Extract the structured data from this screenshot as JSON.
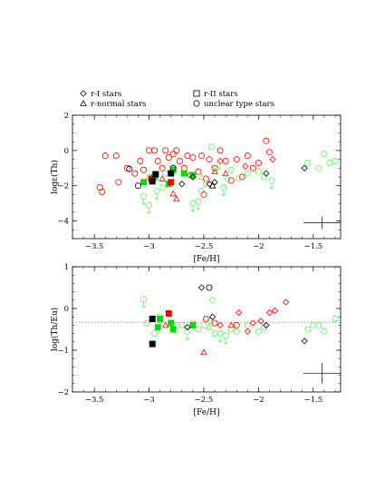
{
  "legend": {
    "items": [
      {
        "marker": "diamond",
        "label": "r-I stars"
      },
      {
        "marker": "square",
        "label": "r-II stars"
      },
      {
        "marker": "triangle",
        "label": "r-normal stars"
      },
      {
        "marker": "circle",
        "label": "unclear type stars"
      }
    ]
  },
  "colors": {
    "black": "#000000",
    "red": "#ff0000",
    "green": "#00dd00",
    "light_green": "#66ee66",
    "ref_line": "#ff6666"
  },
  "chart_data": [
    {
      "type": "scatter",
      "title": "",
      "xlabel": "[Fe/H]",
      "ylabel": "logε(Th)",
      "xlim": [
        -3.7,
        -1.25
      ],
      "ylim": [
        -5,
        2
      ],
      "xticks": [
        -3.5,
        -3,
        -2.5,
        -2,
        -1.5
      ],
      "xtick_labels": [
        "−3.5",
        "−3",
        "−2.5",
        "−2",
        "−1.5"
      ],
      "yticks": [
        -4,
        -2,
        0,
        2
      ],
      "ytick_labels": [
        "−4",
        "−2",
        "0",
        "2"
      ],
      "error_bar": {
        "x": -1.42,
        "y": -4.1,
        "dx": 0.17,
        "dy": 0.35
      },
      "points": [
        {
          "x": -3.45,
          "y": -2.1,
          "m": "circle",
          "c": "red"
        },
        {
          "x": -3.43,
          "y": -2.35,
          "m": "circle",
          "c": "red"
        },
        {
          "x": -3.4,
          "y": -0.3,
          "m": "circle",
          "c": "red"
        },
        {
          "x": -3.3,
          "y": -0.3,
          "m": "circle",
          "c": "red"
        },
        {
          "x": -3.28,
          "y": -1.8,
          "m": "circle",
          "c": "red"
        },
        {
          "x": -3.2,
          "y": -1.0,
          "m": "circle",
          "c": "red"
        },
        {
          "x": -3.13,
          "y": -1.3,
          "m": "circle",
          "c": "red"
        },
        {
          "x": -3.08,
          "y": -0.6,
          "m": "circle",
          "c": "red"
        },
        {
          "x": -3.05,
          "y": -1.1,
          "m": "circle",
          "c": "red"
        },
        {
          "x": -3.0,
          "y": 0.0,
          "m": "circle",
          "c": "red"
        },
        {
          "x": -2.95,
          "y": 0.0,
          "m": "circle",
          "c": "red"
        },
        {
          "x": -2.92,
          "y": -0.6,
          "m": "circle",
          "c": "red"
        },
        {
          "x": -2.88,
          "y": -1.0,
          "m": "circle",
          "c": "red"
        },
        {
          "x": -2.85,
          "y": 0.0,
          "m": "circle",
          "c": "red"
        },
        {
          "x": -2.82,
          "y": -0.4,
          "m": "circle",
          "c": "red"
        },
        {
          "x": -2.78,
          "y": -0.2,
          "m": "circle",
          "c": "red"
        },
        {
          "x": -2.75,
          "y": 0.0,
          "m": "circle",
          "c": "red"
        },
        {
          "x": -2.72,
          "y": -0.6,
          "m": "circle",
          "c": "red"
        },
        {
          "x": -2.68,
          "y": -1.0,
          "m": "circle",
          "c": "red"
        },
        {
          "x": -2.65,
          "y": -0.3,
          "m": "circle",
          "c": "red"
        },
        {
          "x": -2.62,
          "y": -1.4,
          "m": "circle",
          "c": "red"
        },
        {
          "x": -2.6,
          "y": -0.4,
          "m": "circle",
          "c": "red"
        },
        {
          "x": -2.55,
          "y": -1.2,
          "m": "circle",
          "c": "red"
        },
        {
          "x": -2.52,
          "y": -0.3,
          "m": "circle",
          "c": "red"
        },
        {
          "x": -2.5,
          "y": -2.5,
          "m": "circle",
          "c": "red"
        },
        {
          "x": -2.48,
          "y": -1.6,
          "m": "circle",
          "c": "red"
        },
        {
          "x": -2.45,
          "y": -0.5,
          "m": "circle",
          "c": "red"
        },
        {
          "x": -2.4,
          "y": -1.0,
          "m": "circle",
          "c": "red"
        },
        {
          "x": -2.35,
          "y": 0.0,
          "m": "circle",
          "c": "red"
        },
        {
          "x": -2.3,
          "y": -0.6,
          "m": "circle",
          "c": "red"
        },
        {
          "x": -2.25,
          "y": -1.7,
          "m": "circle",
          "c": "red"
        },
        {
          "x": -2.2,
          "y": -0.5,
          "m": "circle",
          "c": "red"
        },
        {
          "x": -2.15,
          "y": -1.5,
          "m": "circle",
          "c": "red"
        },
        {
          "x": -2.1,
          "y": -0.3,
          "m": "circle",
          "c": "red"
        },
        {
          "x": -2.05,
          "y": -1.0,
          "m": "circle",
          "c": "red"
        },
        {
          "x": -2.0,
          "y": -0.7,
          "m": "circle",
          "c": "red"
        },
        {
          "x": -1.93,
          "y": 0.55,
          "m": "circle",
          "c": "red"
        },
        {
          "x": -1.9,
          "y": -0.1,
          "m": "circle",
          "c": "red"
        },
        {
          "x": -2.6,
          "y": -1.5,
          "m": "diamond",
          "c": "red"
        },
        {
          "x": -2.35,
          "y": -0.6,
          "m": "diamond",
          "c": "red"
        },
        {
          "x": -2.12,
          "y": -0.9,
          "m": "diamond",
          "c": "red"
        },
        {
          "x": -1.87,
          "y": -0.5,
          "m": "diamond",
          "c": "red"
        },
        {
          "x": -2.88,
          "y": -1.6,
          "m": "triangle",
          "c": "red"
        },
        {
          "x": -2.78,
          "y": -2.45,
          "m": "triangle",
          "c": "red"
        },
        {
          "x": -2.75,
          "y": -2.75,
          "m": "triangle",
          "c": "red"
        },
        {
          "x": -2.4,
          "y": -1.2,
          "m": "triangle",
          "c": "red"
        },
        {
          "x": -2.3,
          "y": -1.3,
          "m": "triangle",
          "c": "red"
        },
        {
          "x": -3.05,
          "y": -2.6,
          "m": "circle",
          "c": "light_green",
          "upper": true
        },
        {
          "x": -3.0,
          "y": -3.1,
          "m": "circle",
          "c": "light_green",
          "upper": true
        },
        {
          "x": -3.0,
          "y": -1.5,
          "m": "circle",
          "c": "light_green"
        },
        {
          "x": -2.93,
          "y": -2.3,
          "m": "circle",
          "c": "light_green",
          "upper": true
        },
        {
          "x": -2.88,
          "y": -2.1,
          "m": "circle",
          "c": "light_green"
        },
        {
          "x": -2.85,
          "y": -1.3,
          "m": "circle",
          "c": "light_green"
        },
        {
          "x": -2.78,
          "y": -1.8,
          "m": "circle",
          "c": "light_green"
        },
        {
          "x": -2.6,
          "y": -3.0,
          "m": "circle",
          "c": "light_green",
          "upper": true
        },
        {
          "x": -2.55,
          "y": -2.9,
          "m": "circle",
          "c": "light_green",
          "upper": true
        },
        {
          "x": -2.52,
          "y": -2.3,
          "m": "circle",
          "c": "light_green"
        },
        {
          "x": -2.48,
          "y": -1.9,
          "m": "circle",
          "c": "light_green"
        },
        {
          "x": -2.43,
          "y": 0.2,
          "m": "circle",
          "c": "light_green"
        },
        {
          "x": -2.38,
          "y": -1.0,
          "m": "circle",
          "c": "light_green"
        },
        {
          "x": -2.32,
          "y": -2.1,
          "m": "circle",
          "c": "light_green",
          "upper": true
        },
        {
          "x": -2.28,
          "y": -1.6,
          "m": "circle",
          "c": "light_green"
        },
        {
          "x": -2.25,
          "y": -1.1,
          "m": "circle",
          "c": "light_green"
        },
        {
          "x": -2.18,
          "y": -1.6,
          "m": "circle",
          "c": "light_green"
        },
        {
          "x": -2.1,
          "y": -1.3,
          "m": "circle",
          "c": "light_green"
        },
        {
          "x": -2.0,
          "y": -1.2,
          "m": "circle",
          "c": "light_green"
        },
        {
          "x": -1.95,
          "y": -1.5,
          "m": "circle",
          "c": "light_green"
        },
        {
          "x": -1.88,
          "y": -1.7,
          "m": "circle",
          "c": "light_green",
          "upper": true
        },
        {
          "x": -1.55,
          "y": -0.7,
          "m": "circle",
          "c": "light_green"
        },
        {
          "x": -1.45,
          "y": -1.0,
          "m": "circle",
          "c": "light_green"
        },
        {
          "x": -1.4,
          "y": -0.2,
          "m": "circle",
          "c": "light_green"
        },
        {
          "x": -1.35,
          "y": -0.7,
          "m": "circle",
          "c": "light_green"
        },
        {
          "x": -1.3,
          "y": -0.6,
          "m": "circle",
          "c": "light_green"
        },
        {
          "x": -2.52,
          "y": -1.5,
          "m": "triangle",
          "c": "light_green"
        },
        {
          "x": -3.05,
          "y": -1.8,
          "m": "square",
          "c": "green"
        },
        {
          "x": -2.95,
          "y": -1.5,
          "m": "square",
          "c": "green"
        },
        {
          "x": -2.82,
          "y": -1.9,
          "m": "square",
          "c": "green"
        },
        {
          "x": -2.78,
          "y": -1.1,
          "m": "square",
          "c": "green"
        },
        {
          "x": -2.68,
          "y": -1.3,
          "m": "square",
          "c": "green"
        },
        {
          "x": -2.6,
          "y": -1.4,
          "m": "square",
          "c": "green"
        },
        {
          "x": -2.98,
          "y": -1.6,
          "m": "square",
          "c": "red"
        },
        {
          "x": -2.8,
          "y": -1.8,
          "m": "square",
          "c": "red"
        },
        {
          "x": -2.97,
          "y": -1.75,
          "m": "square",
          "c": "black"
        },
        {
          "x": -2.94,
          "y": -1.35,
          "m": "square",
          "c": "black"
        },
        {
          "x": -2.8,
          "y": -1.3,
          "m": "square",
          "c": "black"
        },
        {
          "x": -2.7,
          "y": -1.9,
          "m": "diamond",
          "c": "black"
        },
        {
          "x": -2.6,
          "y": -1.5,
          "m": "diamond",
          "c": "black"
        },
        {
          "x": -2.45,
          "y": -1.9,
          "m": "diamond",
          "c": "black"
        },
        {
          "x": -2.4,
          "y": -1.8,
          "m": "diamond",
          "c": "black"
        },
        {
          "x": -1.93,
          "y": -1.3,
          "m": "diamond",
          "c": "black"
        },
        {
          "x": -1.58,
          "y": -1.0,
          "m": "diamond",
          "c": "black"
        },
        {
          "x": -3.18,
          "y": -1.05,
          "m": "circle",
          "c": "black"
        },
        {
          "x": -3.1,
          "y": -2.0,
          "m": "circle",
          "c": "black"
        },
        {
          "x": -2.78,
          "y": -1.0,
          "m": "circle",
          "c": "black"
        },
        {
          "x": -2.42,
          "y": -2.0,
          "m": "triangle",
          "c": "black"
        }
      ]
    },
    {
      "type": "scatter",
      "title": "",
      "xlabel": "[Fe/H]",
      "ylabel": "log(Th/Eu)",
      "xlim": [
        -3.7,
        -1.25
      ],
      "ylim": [
        -2,
        1
      ],
      "xticks": [
        -3.5,
        -3,
        -2.5,
        -2,
        -1.5
      ],
      "xtick_labels": [
        "−3.5",
        "−3",
        "−2.5",
        "−2",
        "−1.5"
      ],
      "yticks": [
        -2,
        -1,
        0,
        1
      ],
      "ytick_labels": [
        "−2",
        "−1",
        "0",
        "1"
      ],
      "ref_line_y": -0.33,
      "error_bar": {
        "x": -1.42,
        "y": -1.55,
        "dx": 0.17,
        "dy": 0.25
      },
      "points": [
        {
          "x": -2.5,
          "y": -1.05,
          "m": "triangle",
          "c": "red"
        },
        {
          "x": -2.85,
          "y": -0.4,
          "m": "triangle",
          "c": "red"
        },
        {
          "x": -2.25,
          "y": -0.4,
          "m": "triangle",
          "c": "red"
        },
        {
          "x": -2.18,
          "y": -0.1,
          "m": "diamond",
          "c": "red"
        },
        {
          "x": -2.1,
          "y": -0.55,
          "m": "diamond",
          "c": "red"
        },
        {
          "x": -2.05,
          "y": -0.35,
          "m": "diamond",
          "c": "red"
        },
        {
          "x": -1.98,
          "y": -0.3,
          "m": "diamond",
          "c": "red"
        },
        {
          "x": -1.9,
          "y": -0.1,
          "m": "diamond",
          "c": "red"
        },
        {
          "x": -1.85,
          "y": -0.05,
          "m": "diamond",
          "c": "red"
        },
        {
          "x": -1.75,
          "y": 0.15,
          "m": "diamond",
          "c": "red"
        },
        {
          "x": -2.35,
          "y": -0.4,
          "m": "diamond",
          "c": "red"
        },
        {
          "x": -2.48,
          "y": -0.25,
          "m": "circle",
          "c": "red"
        },
        {
          "x": -2.4,
          "y": -0.35,
          "m": "circle",
          "c": "red"
        },
        {
          "x": -2.2,
          "y": -0.4,
          "m": "circle",
          "c": "red"
        },
        {
          "x": -2.82,
          "y": -0.12,
          "m": "square",
          "c": "red"
        },
        {
          "x": -3.05,
          "y": 0.22,
          "m": "circle",
          "c": "light_green",
          "upper": true
        },
        {
          "x": -3.02,
          "y": -0.35,
          "m": "circle",
          "c": "light_green"
        },
        {
          "x": -2.95,
          "y": -0.6,
          "m": "circle",
          "c": "light_green"
        },
        {
          "x": -2.9,
          "y": -0.2,
          "m": "circle",
          "c": "light_green"
        },
        {
          "x": -2.75,
          "y": -0.4,
          "m": "circle",
          "c": "light_green"
        },
        {
          "x": -2.7,
          "y": -0.4,
          "m": "circle",
          "c": "light_green"
        },
        {
          "x": -2.65,
          "y": -0.55,
          "m": "circle",
          "c": "light_green",
          "upper": true
        },
        {
          "x": -2.6,
          "y": -0.35,
          "m": "circle",
          "c": "light_green"
        },
        {
          "x": -2.55,
          "y": -0.5,
          "m": "circle",
          "c": "light_green"
        },
        {
          "x": -2.5,
          "y": -0.4,
          "m": "circle",
          "c": "light_green"
        },
        {
          "x": -2.45,
          "y": -0.3,
          "m": "circle",
          "c": "light_green"
        },
        {
          "x": -2.42,
          "y": 0.2,
          "m": "circle",
          "c": "light_green"
        },
        {
          "x": -2.4,
          "y": -0.6,
          "m": "circle",
          "c": "light_green"
        },
        {
          "x": -2.35,
          "y": -0.6,
          "m": "circle",
          "c": "light_green",
          "upper": true
        },
        {
          "x": -2.3,
          "y": -0.65,
          "m": "circle",
          "c": "light_green",
          "upper": true
        },
        {
          "x": -2.25,
          "y": -0.5,
          "m": "circle",
          "c": "light_green"
        },
        {
          "x": -2.2,
          "y": -0.55,
          "m": "circle",
          "c": "light_green"
        },
        {
          "x": -2.1,
          "y": -0.4,
          "m": "circle",
          "c": "light_green"
        },
        {
          "x": -2.0,
          "y": -0.55,
          "m": "circle",
          "c": "light_green"
        },
        {
          "x": -1.95,
          "y": -0.45,
          "m": "circle",
          "c": "light_green"
        },
        {
          "x": -1.55,
          "y": -0.5,
          "m": "circle",
          "c": "light_green"
        },
        {
          "x": -1.5,
          "y": -0.4,
          "m": "circle",
          "c": "light_green"
        },
        {
          "x": -1.45,
          "y": -0.4,
          "m": "circle",
          "c": "light_green"
        },
        {
          "x": -1.4,
          "y": -0.55,
          "m": "circle",
          "c": "light_green"
        },
        {
          "x": -1.3,
          "y": -0.25,
          "m": "circle",
          "c": "light_green"
        },
        {
          "x": -2.45,
          "y": -0.45,
          "m": "triangle",
          "c": "light_green"
        },
        {
          "x": -2.92,
          "y": -0.45,
          "m": "square",
          "c": "green"
        },
        {
          "x": -2.9,
          "y": -0.25,
          "m": "square",
          "c": "green"
        },
        {
          "x": -2.8,
          "y": -0.35,
          "m": "square",
          "c": "green"
        },
        {
          "x": -2.78,
          "y": -0.5,
          "m": "square",
          "c": "green"
        },
        {
          "x": -2.6,
          "y": -0.4,
          "m": "square",
          "c": "green"
        },
        {
          "x": -2.97,
          "y": -0.25,
          "m": "square",
          "c": "black"
        },
        {
          "x": -2.97,
          "y": -0.85,
          "m": "square",
          "c": "black"
        },
        {
          "x": -2.52,
          "y": 0.5,
          "m": "diamond",
          "c": "black"
        },
        {
          "x": -2.42,
          "y": -0.2,
          "m": "diamond",
          "c": "black"
        },
        {
          "x": -2.65,
          "y": -0.45,
          "m": "diamond",
          "c": "black"
        },
        {
          "x": -1.93,
          "y": -0.4,
          "m": "diamond",
          "c": "black"
        },
        {
          "x": -1.58,
          "y": -0.78,
          "m": "diamond",
          "c": "black"
        },
        {
          "x": -2.45,
          "y": 0.5,
          "m": "circle",
          "c": "black"
        }
      ]
    }
  ]
}
